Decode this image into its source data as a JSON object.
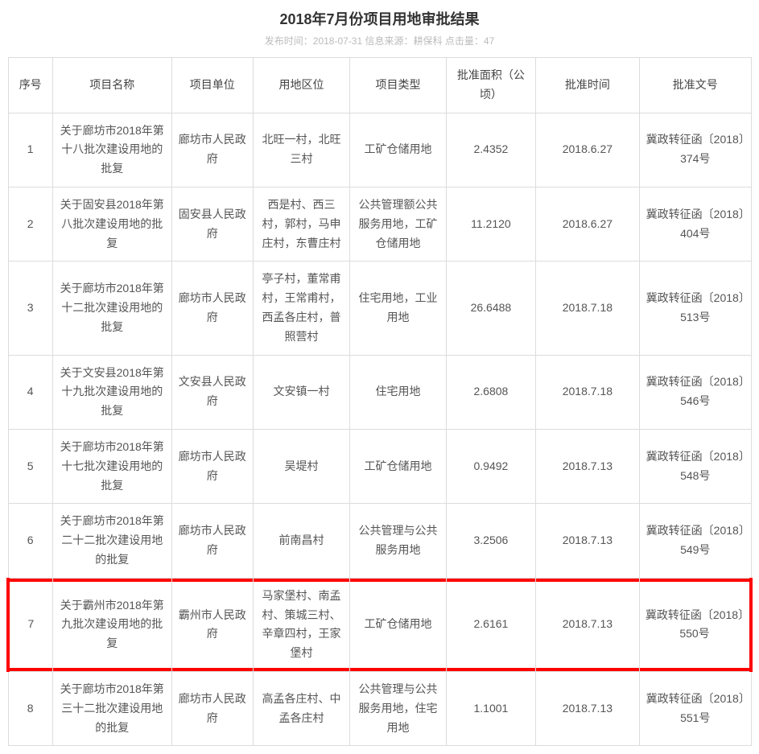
{
  "title": "2018年7月份项目用地审批结果",
  "meta": {
    "publish_label": "发布时间：",
    "publish_date": "2018-07-31",
    "source_label": " 信息来源：",
    "source": "耕保科",
    "hits_label": " 点击量：",
    "hits": "47"
  },
  "columns": [
    "序号",
    "项目名称",
    "项目单位",
    "用地区位",
    "项目类型",
    "批准面积（公顷）",
    "批准时间",
    "批准文号"
  ],
  "column_widths_pct": [
    6,
    16,
    11,
    13,
    13,
    12,
    14,
    15
  ],
  "highlight_row_index": 6,
  "highlight_border_color": "#ff0000",
  "border_color": "#dcdcdc",
  "text_color": "#555555",
  "meta_color": "#bbbbbb",
  "font_size_title_pt": 14,
  "font_size_cell_pt": 10,
  "rows": [
    {
      "seq": "1",
      "name": "关于廊坊市2018年第十八批次建设用地的批复",
      "unit": "廊坊市人民政府",
      "location": "北旺一村，北旺三村",
      "type": "工矿仓储用地",
      "area": "2.4352",
      "date": "2018.6.27",
      "doc": "冀政转征函〔2018〕374号"
    },
    {
      "seq": "2",
      "name": "关于固安县2018年第八批次建设用地的批复",
      "unit": "固安县人民政府",
      "location": "西是村、西三村，郭村，马申庄村，东曹庄村",
      "type": "公共管理额公共服务用地，工矿仓储用地",
      "area": "11.2120",
      "date": "2018.6.27",
      "doc": "冀政转征函〔2018〕404号"
    },
    {
      "seq": "3",
      "name": "关于廊坊市2018年第十二批次建设用地的批复",
      "unit": "廊坊市人民政府",
      "location": "亭子村，董常甫村，王常甫村，西孟各庄村，普照营村",
      "type": "住宅用地，工业用地",
      "area": "26.6488",
      "date": "2018.7.18",
      "doc": "冀政转征函〔2018〕513号"
    },
    {
      "seq": "4",
      "name": "关于文安县2018年第十九批次建设用地的批复",
      "unit": "文安县人民政府",
      "location": "文安镇一村",
      "type": "住宅用地",
      "area": "2.6808",
      "date": "2018.7.18",
      "doc": "冀政转征函〔2018〕546号"
    },
    {
      "seq": "5",
      "name": "关于廊坊市2018年第十七批次建设用地的批复",
      "unit": "廊坊市人民政府",
      "location": "吴堤村",
      "type": "工矿仓储用地",
      "area": "0.9492",
      "date": "2018.7.13",
      "doc": "冀政转征函〔2018〕548号"
    },
    {
      "seq": "6",
      "name": "关于廊坊市2018年第二十二批次建设用地的批复",
      "unit": "廊坊市人民政府",
      "location": "前南昌村",
      "type": "公共管理与公共服务用地",
      "area": "3.2506",
      "date": "2018.7.13",
      "doc": "冀政转征函〔2018〕549号"
    },
    {
      "seq": "7",
      "name": "关于霸州市2018年第九批次建设用地的批复",
      "unit": "霸州市人民政府",
      "location": "马家堡村、南孟村、策城三村、辛章四村，王家堡村",
      "type": "工矿仓储用地",
      "area": "2.6161",
      "date": "2018.7.13",
      "doc": "冀政转征函〔2018〕550号"
    },
    {
      "seq": "8",
      "name": "关于廊坊市2018年第三十二批次建设用地的批复",
      "unit": "廊坊市人民政府",
      "location": "高孟各庄村、中孟各庄村",
      "type": "公共管理与公共服务用地，住宅用地",
      "area": "1.1001",
      "date": "2018.7.13",
      "doc": "冀政转征函〔2018〕551号"
    }
  ]
}
